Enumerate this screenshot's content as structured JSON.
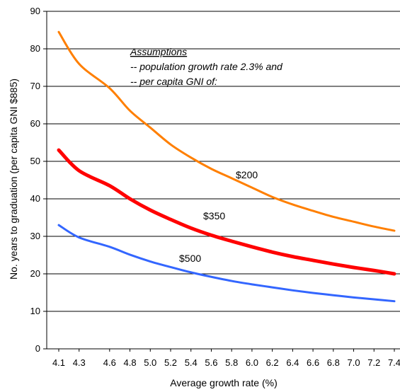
{
  "chart_data": {
    "type": "line",
    "title": "",
    "xlabel": "Average growth rate (%)",
    "ylabel": "No. years to graduation (per capita GNI $885)",
    "ylim": [
      0,
      90
    ],
    "yticks": [
      "0",
      "10",
      "20",
      "30",
      "40",
      "50",
      "60",
      "70",
      "80",
      "90"
    ],
    "xticks": [
      "4.1",
      "4.3",
      "4.6",
      "4.8",
      "5.0",
      "5.2",
      "5.4",
      "5.6",
      "5.8",
      "6.0",
      "6.2",
      "6.4",
      "6.6",
      "6.8",
      "7.0",
      "7.2",
      "7.4"
    ],
    "grid": "horizontal",
    "legend": "none",
    "annotations": {
      "heading": "Assumptions",
      "line1": "-- population growth rate  2.3% and",
      "line2": "-- per capita GNI of:"
    },
    "series": [
      {
        "name": "$200",
        "color": "#ff7f00",
        "x": [
          4.1,
          4.3,
          4.6,
          4.8,
          5.0,
          5.2,
          5.4,
          5.6,
          5.8,
          6.0,
          6.2,
          6.4,
          6.6,
          6.8,
          7.0,
          7.2,
          7.4
        ],
        "values": [
          84.5,
          76,
          69.5,
          63.5,
          59,
          54.5,
          51,
          48,
          45.5,
          43,
          40.5,
          38.5,
          36.8,
          35.2,
          33.9,
          32.6,
          31.5
        ]
      },
      {
        "name": "$350",
        "color": "#ff0000",
        "x": [
          4.1,
          4.3,
          4.6,
          4.8,
          5.0,
          5.2,
          5.4,
          5.6,
          5.8,
          6.0,
          6.2,
          6.4,
          6.6,
          6.8,
          7.0,
          7.2,
          7.4
        ],
        "values": [
          53,
          47.5,
          43.5,
          40,
          37,
          34.5,
          32.2,
          30.3,
          28.7,
          27.2,
          25.8,
          24.6,
          23.6,
          22.6,
          21.7,
          20.9,
          20
        ]
      },
      {
        "name": "$500",
        "color": "#3366ff",
        "x": [
          4.1,
          4.3,
          4.6,
          4.8,
          5.0,
          5.2,
          5.4,
          5.6,
          5.8,
          6.0,
          6.2,
          6.4,
          6.6,
          6.8,
          7.0,
          7.2,
          7.4
        ],
        "values": [
          33,
          29.7,
          27.2,
          25.1,
          23.3,
          21.8,
          20.4,
          19.2,
          18.1,
          17.2,
          16.4,
          15.6,
          14.9,
          14.3,
          13.7,
          13.2,
          12.7
        ]
      }
    ]
  }
}
